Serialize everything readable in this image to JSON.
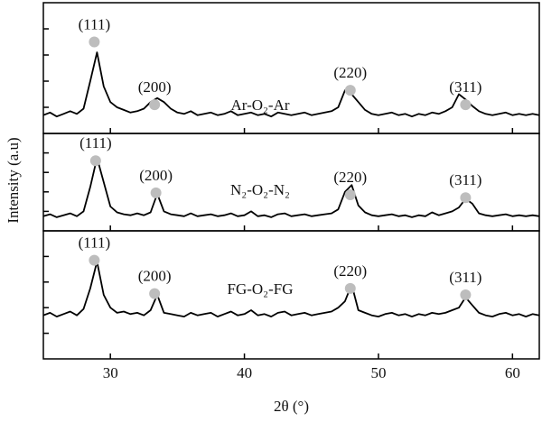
{
  "chart_data": [
    {
      "type": "line",
      "name": "Ar-O₂-Ar",
      "color": "#000000",
      "xlim": [
        25,
        62
      ],
      "ylim": [
        0,
        100
      ],
      "xticks": [
        30,
        40,
        50,
        60
      ],
      "yticks": [
        20,
        40,
        60,
        80
      ],
      "x": [
        25,
        25.5,
        26,
        26.5,
        27,
        27.5,
        28,
        28.5,
        29,
        29.5,
        30,
        30.5,
        31,
        31.5,
        32,
        32.5,
        33,
        33.5,
        34,
        34.5,
        35,
        35.5,
        36,
        36.5,
        37,
        37.5,
        38,
        38.5,
        39,
        39.5,
        40,
        40.5,
        41,
        41.5,
        42,
        42.5,
        43,
        43.5,
        44,
        44.5,
        45,
        45.5,
        46,
        46.5,
        47,
        47.5,
        48,
        48.5,
        49,
        49.5,
        50,
        50.5,
        51,
        51.5,
        52,
        52.5,
        53,
        53.5,
        54,
        54.5,
        55,
        55.5,
        56,
        56.5,
        57,
        57.5,
        58,
        58.5,
        59,
        59.5,
        60,
        60.5,
        61,
        61.5,
        62
      ],
      "values": [
        14,
        16,
        13,
        15,
        17,
        15,
        19,
        40,
        62,
        36,
        24,
        20,
        18,
        16,
        17,
        19,
        24,
        27,
        24,
        19,
        16,
        15,
        17,
        14,
        15,
        16,
        14,
        15,
        17,
        14,
        15,
        16,
        14,
        15,
        13,
        16,
        15,
        14,
        15,
        16,
        14,
        15,
        16,
        17,
        20,
        33,
        30,
        24,
        18,
        15,
        14,
        15,
        16,
        14,
        15,
        13,
        15,
        14,
        16,
        15,
        17,
        20,
        30,
        26,
        21,
        17,
        15,
        14,
        15,
        16,
        14,
        15,
        14,
        15,
        14
      ],
      "annotations": [
        {
          "text": "(111)",
          "x": 28.8,
          "y": 70
        },
        {
          "text": "(200)",
          "x": 33.3,
          "y": 22
        },
        {
          "text": "(220)",
          "x": 47.9,
          "y": 33
        },
        {
          "text": "(311)",
          "x": 56.5,
          "y": 22
        }
      ]
    },
    {
      "type": "line",
      "name": "N₂-O₂-N₂",
      "color": "#000000",
      "ylabel": "Intensity (a.u)",
      "xlim": [
        25,
        62
      ],
      "ylim": [
        0,
        100
      ],
      "xticks": [
        30,
        40,
        50,
        60
      ],
      "yticks": [
        20,
        40,
        60,
        80
      ],
      "x": [
        25,
        25.5,
        26,
        26.5,
        27,
        27.5,
        28,
        28.5,
        29,
        29.5,
        30,
        30.5,
        31,
        31.5,
        32,
        32.5,
        33,
        33.5,
        34,
        34.5,
        35,
        35.5,
        36,
        36.5,
        37,
        37.5,
        38,
        38.5,
        39,
        39.5,
        40,
        40.5,
        41,
        41.5,
        42,
        42.5,
        43,
        43.5,
        44,
        44.5,
        45,
        45.5,
        46,
        46.5,
        47,
        47.5,
        48,
        48.5,
        49,
        49.5,
        50,
        50.5,
        51,
        51.5,
        52,
        52.5,
        53,
        53.5,
        54,
        54.5,
        55,
        55.5,
        56,
        56.5,
        57,
        57.5,
        58,
        58.5,
        59,
        59.5,
        60,
        60.5,
        61,
        61.5,
        62
      ],
      "values": [
        15,
        17,
        14,
        16,
        18,
        15,
        20,
        45,
        75,
        50,
        25,
        19,
        17,
        16,
        18,
        16,
        19,
        38,
        20,
        17,
        16,
        15,
        18,
        15,
        16,
        17,
        15,
        16,
        18,
        15,
        16,
        20,
        15,
        16,
        14,
        17,
        18,
        15,
        16,
        17,
        15,
        16,
        17,
        18,
        22,
        40,
        47,
        26,
        19,
        16,
        15,
        16,
        17,
        15,
        16,
        14,
        16,
        15,
        19,
        16,
        18,
        20,
        24,
        33,
        28,
        18,
        16,
        15,
        16,
        17,
        15,
        16,
        15,
        16,
        15
      ],
      "annotations": [
        {
          "text": "(111)",
          "x": 28.9,
          "y": 72
        },
        {
          "text": "(200)",
          "x": 33.4,
          "y": 39
        },
        {
          "text": "(220)",
          "x": 47.9,
          "y": 37
        },
        {
          "text": "(311)",
          "x": 56.5,
          "y": 34
        }
      ]
    },
    {
      "type": "line",
      "name": "FG-O₂-FG",
      "color": "#000000",
      "xlabel": "2θ (°)",
      "xlim": [
        25,
        62
      ],
      "ylim": [
        0,
        100
      ],
      "xticks": [
        30,
        40,
        50,
        60
      ],
      "yticks": [
        20,
        40,
        60,
        80
      ],
      "x": [
        25,
        25.5,
        26,
        26.5,
        27,
        27.5,
        28,
        28.5,
        29,
        29.5,
        30,
        30.5,
        31,
        31.5,
        32,
        32.5,
        33,
        33.5,
        34,
        34.5,
        35,
        35.5,
        36,
        36.5,
        37,
        37.5,
        38,
        38.5,
        39,
        39.5,
        40,
        40.5,
        41,
        41.5,
        42,
        42.5,
        43,
        43.5,
        44,
        44.5,
        45,
        45.5,
        46,
        46.5,
        47,
        47.5,
        48,
        48.5,
        49,
        49.5,
        50,
        50.5,
        51,
        51.5,
        52,
        52.5,
        53,
        53.5,
        54,
        54.5,
        55,
        55.5,
        56,
        56.5,
        57,
        57.5,
        58,
        58.5,
        59,
        59.5,
        60,
        60.5,
        61,
        61.5,
        62
      ],
      "values": [
        34,
        36,
        33,
        35,
        37,
        34,
        39,
        55,
        76,
        50,
        40,
        36,
        37,
        35,
        36,
        34,
        38,
        50,
        36,
        35,
        34,
        33,
        36,
        34,
        35,
        36,
        33,
        35,
        37,
        34,
        35,
        38,
        34,
        35,
        33,
        36,
        37,
        34,
        35,
        36,
        34,
        35,
        36,
        37,
        40,
        45,
        58,
        38,
        36,
        34,
        33,
        35,
        36,
        34,
        35,
        33,
        35,
        34,
        36,
        35,
        36,
        38,
        40,
        48,
        42,
        36,
        34,
        33,
        35,
        36,
        34,
        35,
        33,
        35,
        34
      ],
      "annotations": [
        {
          "text": "(111)",
          "x": 28.8,
          "y": 77
        },
        {
          "text": "(200)",
          "x": 33.3,
          "y": 51
        },
        {
          "text": "(220)",
          "x": 47.9,
          "y": 55
        },
        {
          "text": "(311)",
          "x": 56.5,
          "y": 50
        }
      ]
    }
  ]
}
